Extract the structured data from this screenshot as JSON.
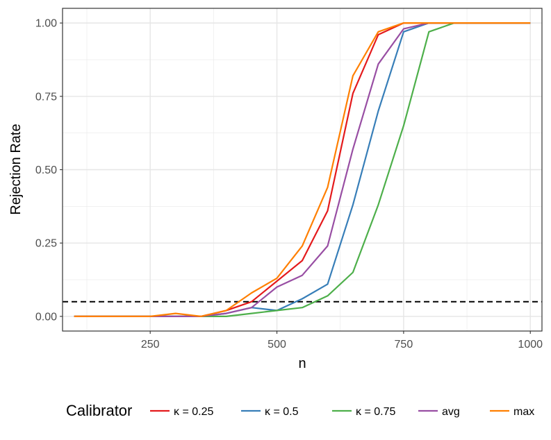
{
  "chart_data": {
    "type": "line",
    "xlabel": "n",
    "ylabel": "Rejection Rate",
    "xlim": [
      77,
      1023
    ],
    "ylim": [
      -0.05,
      1.05
    ],
    "x_ticks": [
      250,
      500,
      750,
      1000
    ],
    "x_tick_labels": [
      "250",
      "500",
      "750",
      "1000"
    ],
    "y_ticks": [
      0,
      0.25,
      0.5,
      0.75,
      1.0
    ],
    "y_tick_labels": [
      "0.00",
      "0.25",
      "0.50",
      "0.75",
      "1.00"
    ],
    "grid": true,
    "legend_position": "bottom",
    "legend_title": "Calibrator",
    "reference_line": {
      "y": 0.05,
      "style": "dashed",
      "color": "#000000"
    },
    "x": [
      100,
      150,
      200,
      250,
      300,
      350,
      400,
      450,
      500,
      550,
      600,
      650,
      700,
      750,
      800,
      850,
      900,
      950,
      1000
    ],
    "series": [
      {
        "name": "κ = 0.25",
        "color": "#E41A1C",
        "values": [
          0,
          0,
          0,
          0,
          0,
          0,
          0.02,
          0.05,
          0.12,
          0.19,
          0.36,
          0.76,
          0.96,
          1.0,
          1.0,
          1.0,
          1.0,
          1.0,
          1.0
        ]
      },
      {
        "name": "κ = 0.5",
        "color": "#377EB8",
        "values": [
          0,
          0,
          0,
          0,
          0,
          0,
          0.01,
          0.03,
          0.02,
          0.06,
          0.11,
          0.38,
          0.7,
          0.97,
          1.0,
          1.0,
          1.0,
          1.0,
          1.0
        ]
      },
      {
        "name": "κ = 0.75",
        "color": "#4DAF4A",
        "values": [
          0,
          0,
          0,
          0,
          0,
          0,
          0,
          0.01,
          0.02,
          0.03,
          0.07,
          0.15,
          0.38,
          0.65,
          0.97,
          1.0,
          1.0,
          1.0,
          1.0
        ]
      },
      {
        "name": "avg",
        "color": "#984EA3",
        "values": [
          0,
          0,
          0,
          0,
          0,
          0,
          0.01,
          0.03,
          0.1,
          0.14,
          0.24,
          0.57,
          0.86,
          0.98,
          1.0,
          1.0,
          1.0,
          1.0,
          1.0
        ]
      },
      {
        "name": "max",
        "color": "#FF7F00",
        "values": [
          0,
          0,
          0,
          0,
          0.01,
          0,
          0.02,
          0.08,
          0.13,
          0.24,
          0.44,
          0.82,
          0.97,
          1.0,
          1.0,
          1.0,
          1.0,
          1.0,
          1.0
        ]
      }
    ]
  }
}
